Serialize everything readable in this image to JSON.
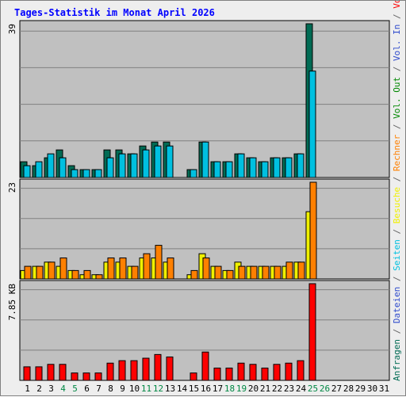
{
  "title": "Tages-Statistik im Monat April 2026",
  "chart_data": {
    "type": "bar",
    "title": "Tages-Statistik im Monat April 2026",
    "categories": [
      "1",
      "2",
      "3",
      "4",
      "5",
      "6",
      "7",
      "8",
      "9",
      "10",
      "11",
      "12",
      "13",
      "14",
      "15",
      "16",
      "17",
      "18",
      "19",
      "20",
      "21",
      "22",
      "23",
      "24",
      "25",
      "26",
      "27",
      "28",
      "29",
      "30",
      "31"
    ],
    "weekend_days": [
      "4",
      "5",
      "11",
      "12",
      "18",
      "19",
      "25",
      "26"
    ],
    "panels": [
      {
        "name": "hits",
        "max_label": "39",
        "max": 39,
        "series": [
          {
            "name": "Anfragen",
            "color": "#006b54",
            "values": [
              4,
              3,
              5,
              7,
              3,
              2,
              2,
              7,
              7,
              6,
              8,
              9,
              9,
              0,
              2,
              9,
              4,
              4,
              6,
              5,
              4,
              5,
              5,
              6,
              39,
              0,
              0,
              0,
              0,
              0,
              0
            ]
          },
          {
            "name": "Dateien",
            "color": "#2e4acc",
            "values": [
              3,
              3,
              5,
              5,
              2,
              2,
              2,
              5,
              6,
              6,
              7,
              8,
              7,
              0,
              2,
              9,
              4,
              4,
              6,
              5,
              4,
              5,
              5,
              6,
              12,
              0,
              0,
              0,
              0,
              0,
              0
            ]
          },
          {
            "name": "Seiten",
            "color": "#00c0e0",
            "values": [
              3,
              4,
              6,
              5,
              2,
              2,
              2,
              5,
              6,
              6,
              7,
              8,
              8,
              0,
              2,
              9,
              4,
              4,
              6,
              5,
              4,
              5,
              5,
              6,
              27,
              0,
              0,
              0,
              0,
              0,
              0
            ]
          }
        ]
      },
      {
        "name": "visits",
        "max_label": "23",
        "max": 23,
        "series": [
          {
            "name": "Besuche",
            "color": "#f0f000",
            "values": [
              2,
              3,
              4,
              3,
              2,
              1,
              1,
              4,
              4,
              3,
              5,
              5,
              4,
              0,
              1,
              6,
              3,
              2,
              4,
              3,
              3,
              3,
              3,
              4,
              16,
              0,
              0,
              0,
              0,
              0,
              0
            ]
          },
          {
            "name": "Rechner",
            "color": "#ff8000",
            "values": [
              3,
              3,
              4,
              5,
              2,
              2,
              1,
              5,
              5,
              3,
              6,
              8,
              5,
              0,
              2,
              5,
              3,
              2,
              3,
              3,
              3,
              3,
              4,
              4,
              23,
              0,
              0,
              0,
              0,
              0,
              0
            ]
          }
        ]
      },
      {
        "name": "volume",
        "max_label": "7.85 KB",
        "max": 7.85,
        "series": [
          {
            "name": "Volumen",
            "color": "#ff0000",
            "values": [
              1.1,
              1.1,
              1.3,
              1.3,
              0.6,
              0.6,
              0.6,
              1.4,
              1.6,
              1.6,
              1.8,
              2.1,
              1.9,
              0,
              0.6,
              2.3,
              1.0,
              1.0,
              1.4,
              1.3,
              1.0,
              1.3,
              1.4,
              1.6,
              7.85,
              0,
              0,
              0,
              0,
              0,
              0
            ]
          }
        ]
      }
    ],
    "right_legend": [
      {
        "text": "Anfragen",
        "color": "#006b54"
      },
      {
        "text": "/",
        "color": "#666666"
      },
      {
        "text": "Dateien",
        "color": "#2e4acc"
      },
      {
        "text": "/",
        "color": "#666666"
      },
      {
        "text": "Seiten",
        "color": "#00c0e0"
      },
      {
        "text": "/",
        "color": "#666666"
      },
      {
        "text": "Besuche",
        "color": "#f0f000"
      },
      {
        "text": "/",
        "color": "#666666"
      },
      {
        "text": "Rechner",
        "color": "#ff8000"
      },
      {
        "text": "/",
        "color": "#666666"
      },
      {
        "text": "Vol. Out",
        "color": "#008800"
      },
      {
        "text": "/",
        "color": "#666666"
      },
      {
        "text": "Vol. In",
        "color": "#2e4acc"
      },
      {
        "text": "/",
        "color": "#666666"
      },
      {
        "text": "Volumen",
        "color": "#ff0000"
      }
    ],
    "colors": {
      "title": "#0000ff",
      "plot_bg": "#c0c0c0",
      "frame_bg": "#eeeeee",
      "grid": "#808080",
      "weekday_label": "#000000",
      "weekend_label": "#008844"
    }
  }
}
